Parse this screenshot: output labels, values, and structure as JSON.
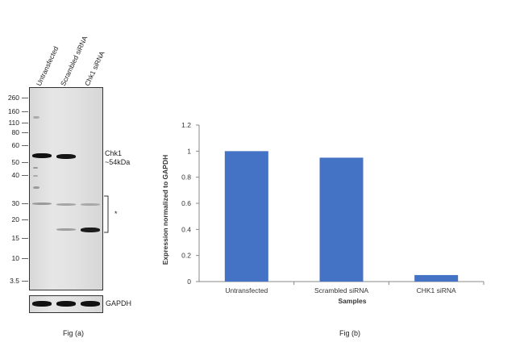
{
  "blot": {
    "lanes": [
      "Untransfected",
      "Scrambled siRNA",
      "Chk1 siRNA"
    ],
    "mw_markers": [
      "260",
      "160",
      "110",
      "80",
      "60",
      "50",
      "40",
      "30",
      "20",
      "15",
      "10",
      "3.5"
    ],
    "target_label_line1": "Chk1",
    "target_label_line2": "~54kDa",
    "asterisk": "*",
    "loading_control": "GAPDH",
    "caption": "Fig (a)"
  },
  "chart_data": {
    "type": "bar",
    "categories": [
      "Untransfected",
      "Scrambled siRNA",
      "CHK1 siRNA"
    ],
    "values": [
      1.0,
      0.95,
      0.05
    ],
    "title": "",
    "xlabel": "Samples",
    "ylabel": "Expression  normalized to GAPDH",
    "ylim": [
      0,
      1.2
    ],
    "yticks": [
      "0",
      "0.2",
      "0.4",
      "0.6",
      "0.8",
      "1",
      "1.2"
    ],
    "bar_color": "#4472c4",
    "grid": false,
    "caption": "Fig (b)"
  }
}
